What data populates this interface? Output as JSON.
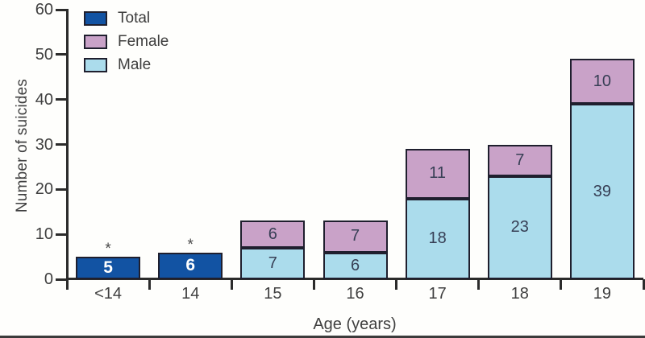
{
  "figure": {
    "ylabel": "Number of suicides",
    "xlabel": "Age (years)"
  },
  "legend": {
    "items": [
      {
        "label": "Total",
        "color": "#1253a3"
      },
      {
        "label": "Female",
        "color": "#c9a2c8"
      },
      {
        "label": "Male",
        "color": "#abdcec"
      }
    ]
  },
  "colors": {
    "total": "#1253a3",
    "female": "#c9a2c8",
    "male": "#abdcec",
    "outline": "#1f1f2e",
    "axis": "#2b2b2b",
    "ink": "#3f3f3f",
    "bar_ink": "#373f55",
    "bottom_rule": "#3b3b3b"
  },
  "chart_data": {
    "type": "bar",
    "stacked": true,
    "title": "",
    "xlabel": "Age (years)",
    "ylabel": "Number of suicides",
    "categories": [
      "<14",
      "14",
      "15",
      "16",
      "17",
      "18",
      "19"
    ],
    "series": [
      {
        "name": "Male",
        "color": "#abdcec",
        "values": [
          null,
          null,
          7,
          6,
          18,
          23,
          39
        ]
      },
      {
        "name": "Female",
        "color": "#c9a2c8",
        "values": [
          null,
          null,
          6,
          7,
          11,
          7,
          10
        ]
      },
      {
        "name": "Total",
        "color": "#1253a3",
        "values": [
          5,
          6,
          null,
          null,
          null,
          null,
          null
        ]
      }
    ],
    "annotations": [
      {
        "category": "<14",
        "text": "*"
      },
      {
        "category": "14",
        "text": "*"
      }
    ],
    "ylim": [
      0,
      60
    ],
    "yticks": [
      0,
      10,
      20,
      30,
      40,
      50,
      60
    ],
    "legend_position": "top-left",
    "grid": false
  }
}
